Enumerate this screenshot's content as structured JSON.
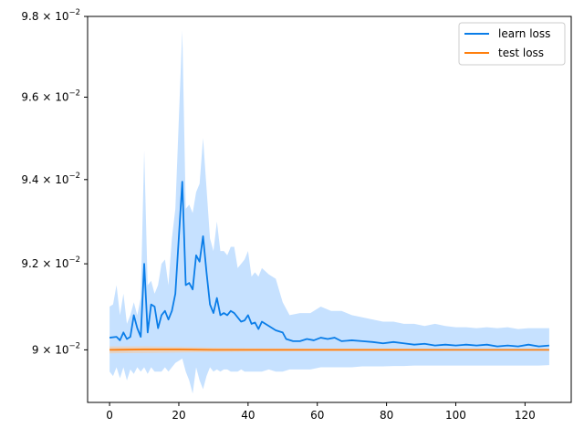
{
  "chart_data": {
    "type": "line",
    "title": "",
    "xlabel": "",
    "ylabel": "",
    "xlim": [
      -6.35,
      133.35
    ],
    "ylim": [
      0.0888,
      0.098
    ],
    "yscale": "log",
    "grid": false,
    "legend_position": "top-right",
    "x_ticks": [
      0,
      20,
      40,
      60,
      80,
      100,
      120
    ],
    "x_tick_labels": [
      "0",
      "20",
      "40",
      "60",
      "80",
      "100",
      "120"
    ],
    "y_ticks": [
      0.09,
      0.092,
      0.094,
      0.096,
      0.098
    ],
    "y_tick_labels": [
      {
        "mantissa": "9",
        "exp": "−2"
      },
      {
        "mantissa": "9.2",
        "exp": "−2"
      },
      {
        "mantissa": "9.4",
        "exp": "−2"
      },
      {
        "mantissa": "9.6",
        "exp": "−2"
      },
      {
        "mantissa": "9.8",
        "exp": "−2"
      }
    ],
    "series": [
      {
        "name": "learn loss",
        "color": "#0a7de8",
        "band_color": "#bcdcff",
        "points": [
          [
            0,
            0.09028
          ],
          [
            2,
            0.0903
          ],
          [
            3,
            0.09022
          ],
          [
            4,
            0.0904
          ],
          [
            5,
            0.09025
          ],
          [
            6,
            0.0903
          ],
          [
            7,
            0.0908
          ],
          [
            8,
            0.0905
          ],
          [
            9,
            0.0903
          ],
          [
            10,
            0.092
          ],
          [
            11,
            0.0904
          ],
          [
            12,
            0.09105
          ],
          [
            13,
            0.091
          ],
          [
            14,
            0.0905
          ],
          [
            15,
            0.0908
          ],
          [
            16,
            0.0909
          ],
          [
            17,
            0.0907
          ],
          [
            18,
            0.0909
          ],
          [
            19,
            0.0913
          ],
          [
            21,
            0.09395
          ],
          [
            22,
            0.0915
          ],
          [
            23,
            0.09155
          ],
          [
            24,
            0.0914
          ],
          [
            25,
            0.0922
          ],
          [
            26,
            0.09205
          ],
          [
            27,
            0.09265
          ],
          [
            28,
            0.0918
          ],
          [
            29,
            0.09105
          ],
          [
            30,
            0.09085
          ],
          [
            31,
            0.0912
          ],
          [
            32,
            0.0908
          ],
          [
            33,
            0.09085
          ],
          [
            34,
            0.0908
          ],
          [
            35,
            0.0909
          ],
          [
            36,
            0.09085
          ],
          [
            37,
            0.09075
          ],
          [
            38,
            0.09065
          ],
          [
            39,
            0.09068
          ],
          [
            40,
            0.0908
          ],
          [
            41,
            0.0906
          ],
          [
            42,
            0.09063
          ],
          [
            43,
            0.09048
          ],
          [
            44,
            0.09065
          ],
          [
            46,
            0.09055
          ],
          [
            48,
            0.09045
          ],
          [
            50,
            0.0904
          ],
          [
            51,
            0.09025
          ],
          [
            53,
            0.0902
          ],
          [
            55,
            0.0902
          ],
          [
            57,
            0.09025
          ],
          [
            59,
            0.09022
          ],
          [
            61,
            0.09028
          ],
          [
            63,
            0.09025
          ],
          [
            65,
            0.09028
          ],
          [
            67,
            0.0902
          ],
          [
            70,
            0.09022
          ],
          [
            73,
            0.0902
          ],
          [
            76,
            0.09018
          ],
          [
            79,
            0.09015
          ],
          [
            82,
            0.09018
          ],
          [
            85,
            0.09015
          ],
          [
            88,
            0.09012
          ],
          [
            91,
            0.09014
          ],
          [
            94,
            0.0901
          ],
          [
            97,
            0.09012
          ],
          [
            100,
            0.0901
          ],
          [
            103,
            0.09012
          ],
          [
            106,
            0.0901
          ],
          [
            109,
            0.09012
          ],
          [
            112,
            0.09008
          ],
          [
            115,
            0.0901
          ],
          [
            118,
            0.09008
          ],
          [
            121,
            0.09012
          ],
          [
            124,
            0.09008
          ],
          [
            127,
            0.0901
          ]
        ],
        "band": [
          [
            0,
            0.0895,
            0.091
          ],
          [
            1,
            0.0894,
            0.09105
          ],
          [
            2,
            0.0896,
            0.0915
          ],
          [
            3,
            0.08935,
            0.0908
          ],
          [
            4,
            0.0896,
            0.0913
          ],
          [
            5,
            0.0893,
            0.0906
          ],
          [
            6,
            0.08955,
            0.0908
          ],
          [
            7,
            0.08945,
            0.0911
          ],
          [
            8,
            0.0896,
            0.0908
          ],
          [
            9,
            0.0895,
            0.0912
          ],
          [
            10,
            0.0896,
            0.0947
          ],
          [
            11,
            0.08945,
            0.0915
          ],
          [
            12,
            0.0896,
            0.0916
          ],
          [
            13,
            0.0895,
            0.0913
          ],
          [
            14,
            0.0895,
            0.0915
          ],
          [
            15,
            0.0895,
            0.092
          ],
          [
            16,
            0.0896,
            0.0921
          ],
          [
            17,
            0.0895,
            0.0915
          ],
          [
            18,
            0.0896,
            0.0926
          ],
          [
            19,
            0.0897,
            0.0933
          ],
          [
            21,
            0.0898,
            0.09765
          ],
          [
            22,
            0.0895,
            0.0933
          ],
          [
            23,
            0.0893,
            0.0934
          ],
          [
            24,
            0.089,
            0.0932
          ],
          [
            25,
            0.0896,
            0.0937
          ],
          [
            26,
            0.0893,
            0.0939
          ],
          [
            27,
            0.0891,
            0.095
          ],
          [
            28,
            0.0894,
            0.0938
          ],
          [
            29,
            0.0896,
            0.0926
          ],
          [
            30,
            0.0895,
            0.0923
          ],
          [
            31,
            0.08955,
            0.093
          ],
          [
            32,
            0.0895,
            0.0923
          ],
          [
            33,
            0.08955,
            0.0923
          ],
          [
            34,
            0.08955,
            0.0922
          ],
          [
            35,
            0.0895,
            0.0924
          ],
          [
            36,
            0.0895,
            0.0924
          ],
          [
            37,
            0.0895,
            0.0919
          ],
          [
            38,
            0.08955,
            0.092
          ],
          [
            39,
            0.0895,
            0.0921
          ],
          [
            40,
            0.0895,
            0.0923
          ],
          [
            41,
            0.0895,
            0.0917
          ],
          [
            42,
            0.0895,
            0.0918
          ],
          [
            43,
            0.0895,
            0.0917
          ],
          [
            44,
            0.0895,
            0.0919
          ],
          [
            46,
            0.08955,
            0.09175
          ],
          [
            48,
            0.0895,
            0.09165
          ],
          [
            50,
            0.0895,
            0.0911
          ],
          [
            52,
            0.08955,
            0.0908
          ],
          [
            55,
            0.08955,
            0.09085
          ],
          [
            58,
            0.08955,
            0.09085
          ],
          [
            61,
            0.0896,
            0.091
          ],
          [
            64,
            0.0896,
            0.0909
          ],
          [
            67,
            0.0896,
            0.0909
          ],
          [
            70,
            0.0896,
            0.0908
          ],
          [
            73,
            0.08962,
            0.09075
          ],
          [
            76,
            0.08962,
            0.0907
          ],
          [
            79,
            0.08962,
            0.09065
          ],
          [
            82,
            0.08963,
            0.09065
          ],
          [
            85,
            0.08963,
            0.0906
          ],
          [
            88,
            0.08964,
            0.0906
          ],
          [
            91,
            0.08964,
            0.09055
          ],
          [
            94,
            0.08964,
            0.0906
          ],
          [
            97,
            0.08964,
            0.09055
          ],
          [
            100,
            0.08964,
            0.09052
          ],
          [
            103,
            0.08964,
            0.09052
          ],
          [
            106,
            0.08964,
            0.0905
          ],
          [
            109,
            0.08964,
            0.09052
          ],
          [
            112,
            0.08964,
            0.0905
          ],
          [
            115,
            0.08964,
            0.09052
          ],
          [
            118,
            0.08964,
            0.09048
          ],
          [
            121,
            0.08964,
            0.0905
          ],
          [
            124,
            0.08964,
            0.0905
          ],
          [
            127,
            0.08965,
            0.0905
          ]
        ]
      },
      {
        "name": "test loss",
        "color": "#ff7f0e",
        "band_color": "#f8c9a0",
        "points": [
          [
            0,
            0.09
          ],
          [
            10,
            0.09001
          ],
          [
            20,
            0.09001
          ],
          [
            30,
            0.09
          ],
          [
            40,
            0.09
          ],
          [
            60,
            0.09
          ],
          [
            80,
            0.09
          ],
          [
            100,
            0.09
          ],
          [
            127,
            0.09
          ]
        ],
        "band": [
          [
            0,
            0.08992,
            0.09008
          ],
          [
            10,
            0.08993,
            0.09008
          ],
          [
            20,
            0.08994,
            0.09007
          ],
          [
            30,
            0.08995,
            0.09005
          ],
          [
            40,
            0.08996,
            0.09004
          ],
          [
            60,
            0.08997,
            0.09003
          ],
          [
            80,
            0.08997,
            0.09003
          ],
          [
            100,
            0.08998,
            0.09002
          ],
          [
            127,
            0.08998,
            0.09002
          ]
        ]
      }
    ]
  }
}
